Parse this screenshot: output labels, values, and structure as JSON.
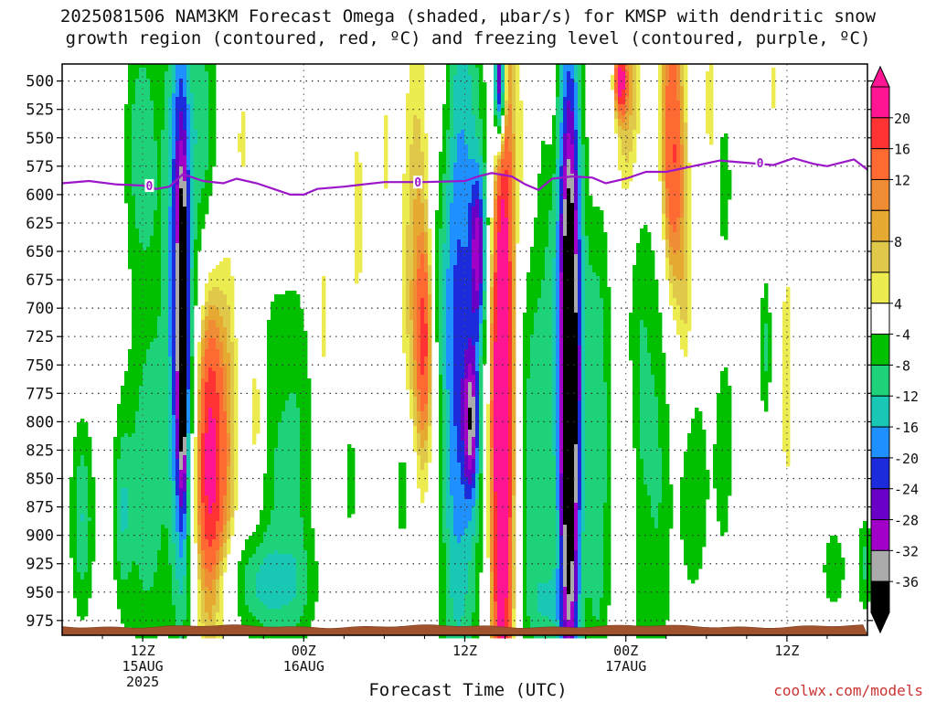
{
  "title_line1": "2025081506 NAM3KM Forecast Omega (shaded, µbar/s) for KMSP with dendritic snow",
  "title_line2": "growth region (contoured, red, ºC) and freezing level (contoured, purple, ºC)",
  "credit": "coolwx.com/models",
  "chart_data": {
    "type": "heatmap",
    "xlabel": "Forecast Time (UTC)",
    "x_ticks": [
      {
        "hour": 12,
        "lines": [
          "12Z",
          "15AUG",
          "2025"
        ]
      },
      {
        "hour": 24,
        "lines": [
          "00Z",
          "16AUG"
        ]
      },
      {
        "hour": 36,
        "lines": [
          "12Z"
        ]
      },
      {
        "hour": 48,
        "lines": [
          "00Z",
          "17AUG"
        ]
      },
      {
        "hour": 60,
        "lines": [
          "12Z"
        ]
      }
    ],
    "x_range_hours": [
      6,
      66
    ],
    "y_ticks": [
      500,
      525,
      550,
      575,
      600,
      625,
      650,
      675,
      700,
      725,
      750,
      775,
      800,
      825,
      850,
      875,
      900,
      925,
      950,
      975
    ],
    "ylim": [
      485,
      988
    ],
    "colorbar": {
      "labels": [
        "20",
        "16",
        "12",
        "8",
        "4",
        "-4",
        "-8",
        "-12",
        "-16",
        "-20",
        "-24",
        "-28",
        "-32",
        "-36"
      ],
      "bins": [
        {
          "color": "#ff1493"
        },
        {
          "color": "#ff3333"
        },
        {
          "color": "#ff6a33"
        },
        {
          "color": "#f08c33"
        },
        {
          "color": "#e6aa33"
        },
        {
          "color": "#e0c84a"
        },
        {
          "color": "#ecec50"
        },
        {
          "color": "#ffffff"
        },
        {
          "color": "#00c000"
        },
        {
          "color": "#1ed27a"
        },
        {
          "color": "#18c8b4"
        },
        {
          "color": "#1e90ff"
        },
        {
          "color": "#1c2cdc"
        },
        {
          "color": "#6a00c8"
        },
        {
          "color": "#a000c8"
        },
        {
          "color": "#aaaaaa"
        },
        {
          "color": "#000000"
        }
      ]
    },
    "freezing_level_label": "0",
    "freezing_level": [
      {
        "h": 6,
        "p": 590
      },
      {
        "h": 8,
        "p": 588
      },
      {
        "h": 10,
        "p": 591
      },
      {
        "h": 12,
        "p": 592
      },
      {
        "h": 13,
        "p": 595
      },
      {
        "h": 14,
        "p": 593
      },
      {
        "h": 15,
        "p": 582
      },
      {
        "h": 16.5,
        "p": 588
      },
      {
        "h": 18,
        "p": 590
      },
      {
        "h": 19,
        "p": 586
      },
      {
        "h": 20.5,
        "p": 590
      },
      {
        "h": 22,
        "p": 596
      },
      {
        "h": 23,
        "p": 600
      },
      {
        "h": 24,
        "p": 600
      },
      {
        "h": 25,
        "p": 595
      },
      {
        "h": 27,
        "p": 593
      },
      {
        "h": 30,
        "p": 589
      },
      {
        "h": 33,
        "p": 589
      },
      {
        "h": 36,
        "p": 588
      },
      {
        "h": 37,
        "p": 584
      },
      {
        "h": 38,
        "p": 581
      },
      {
        "h": 39.5,
        "p": 584
      },
      {
        "h": 40.5,
        "p": 591
      },
      {
        "h": 41.5,
        "p": 596
      },
      {
        "h": 42.5,
        "p": 586
      },
      {
        "h": 44,
        "p": 584
      },
      {
        "h": 45.5,
        "p": 585
      },
      {
        "h": 46.5,
        "p": 590
      },
      {
        "h": 48,
        "p": 586
      },
      {
        "h": 49.5,
        "p": 580
      },
      {
        "h": 51,
        "p": 580
      },
      {
        "h": 53,
        "p": 575
      },
      {
        "h": 55,
        "p": 570
      },
      {
        "h": 57,
        "p": 572
      },
      {
        "h": 59,
        "p": 574
      },
      {
        "h": 60.5,
        "p": 568
      },
      {
        "h": 62,
        "p": 573
      },
      {
        "h": 63,
        "p": 575
      },
      {
        "h": 65,
        "p": 569
      },
      {
        "h": 66,
        "p": 578
      }
    ],
    "omega_features": [
      {
        "h": 7.5,
        "p": 885,
        "v": -12,
        "sh": 0.6,
        "sp": 60
      },
      {
        "h": 10.5,
        "p": 880,
        "v": -10,
        "sh": 0.5,
        "sp": 60
      },
      {
        "h": 12.3,
        "p": 870,
        "v": -10,
        "sh": 1.0,
        "sp": 95
      },
      {
        "h": 11.8,
        "p": 555,
        "v": -8,
        "sh": 0.7,
        "sp": 70
      },
      {
        "h": 14.5,
        "p": 620,
        "v": -8,
        "sh": 2.2,
        "sp": 180
      },
      {
        "h": 14.8,
        "p": 700,
        "v": -24,
        "sh": 0.55,
        "sp": 180
      },
      {
        "h": 15.0,
        "p": 730,
        "v": -30,
        "sh": 0.22,
        "sp": 90
      },
      {
        "h": 17.0,
        "p": 830,
        "v": 24,
        "sh": 0.8,
        "sp": 110
      },
      {
        "h": 18.5,
        "p": 790,
        "v": 6,
        "sh": 0.6,
        "sp": 160
      },
      {
        "h": 16.5,
        "p": 540,
        "v": -7,
        "sh": 0.6,
        "sp": 60
      },
      {
        "h": 20.5,
        "p": 795,
        "v": 9,
        "sh": 0.5,
        "sp": 55
      },
      {
        "h": 21.5,
        "p": 830,
        "v": -7,
        "sh": 1.0,
        "sp": 120
      },
      {
        "h": 19.5,
        "p": 550,
        "v": 5,
        "sh": 0.4,
        "sp": 40
      },
      {
        "h": 23.5,
        "p": 840,
        "v": -8,
        "sh": 0.9,
        "sp": 120
      },
      {
        "h": 21.0,
        "p": 945,
        "v": -10,
        "sh": 2.5,
        "sp": 30
      },
      {
        "h": 25.5,
        "p": 710,
        "v": 5,
        "sh": 0.4,
        "sp": 70
      },
      {
        "h": 28.0,
        "p": 620,
        "v": 5,
        "sh": 0.5,
        "sp": 90
      },
      {
        "h": 27.5,
        "p": 850,
        "v": -6,
        "sh": 0.4,
        "sp": 40
      },
      {
        "h": 30.0,
        "p": 560,
        "v": 4.5,
        "sh": 0.3,
        "sp": 70
      },
      {
        "h": 31.5,
        "p": 860,
        "v": -8,
        "sh": 0.6,
        "sp": 50
      },
      {
        "h": 32.5,
        "p": 680,
        "v": 9,
        "sh": 0.9,
        "sp": 180
      },
      {
        "h": 33.0,
        "p": 730,
        "v": 12,
        "sh": 0.4,
        "sp": 60
      },
      {
        "h": 34.0,
        "p": 860,
        "v": 5,
        "sh": 0.5,
        "sp": 80
      },
      {
        "h": 35.0,
        "p": 760,
        "v": -10,
        "sh": 1.0,
        "sp": 200
      },
      {
        "h": 34.5,
        "p": 520,
        "v": 5,
        "sh": 0.5,
        "sp": 60
      },
      {
        "h": 36.0,
        "p": 680,
        "v": -14,
        "sh": 1.2,
        "sp": 280
      },
      {
        "h": 36.5,
        "p": 800,
        "v": -22,
        "sh": 0.4,
        "sp": 45
      },
      {
        "h": 37.0,
        "p": 650,
        "v": -22,
        "sh": 0.4,
        "sp": 50
      },
      {
        "h": 38.5,
        "p": 560,
        "v": -12,
        "sh": 0.7,
        "sp": 100
      },
      {
        "h": 38.6,
        "p": 495,
        "v": -40,
        "sh": 0.3,
        "sp": 40
      },
      {
        "h": 38.5,
        "p": 640,
        "v": 9,
        "sh": 0.9,
        "sp": 330
      },
      {
        "h": 38.8,
        "p": 740,
        "v": 26,
        "sh": 0.55,
        "sp": 270
      },
      {
        "h": 40.5,
        "p": 560,
        "v": 5,
        "sh": 0.6,
        "sp": 60
      },
      {
        "h": 41.0,
        "p": 840,
        "v": -8,
        "sh": 0.8,
        "sp": 130
      },
      {
        "h": 42.3,
        "p": 960,
        "v": -7,
        "sh": 1.2,
        "sp": 25
      },
      {
        "h": 43.7,
        "p": 700,
        "v": -12,
        "sh": 1.6,
        "sp": 240
      },
      {
        "h": 43.8,
        "p": 775,
        "v": -42,
        "sh": 0.5,
        "sp": 180
      },
      {
        "h": 42.5,
        "p": 520,
        "v": 5,
        "sh": 0.4,
        "sp": 50
      },
      {
        "h": 45.5,
        "p": 560,
        "v": 5,
        "sh": 0.6,
        "sp": 70
      },
      {
        "h": 46.0,
        "p": 840,
        "v": -8,
        "sh": 0.6,
        "sp": 160
      },
      {
        "h": 48.5,
        "p": 520,
        "v": 12,
        "sh": 0.9,
        "sp": 85
      },
      {
        "h": 47.6,
        "p": 500,
        "v": 18,
        "sh": 0.3,
        "sp": 20
      },
      {
        "h": 49.0,
        "p": 720,
        "v": -8,
        "sh": 0.7,
        "sp": 240
      },
      {
        "h": 48.2,
        "p": 870,
        "v": 6,
        "sh": 0.4,
        "sp": 70
      },
      {
        "h": 50.5,
        "p": 820,
        "v": -8,
        "sh": 0.7,
        "sp": 180
      },
      {
        "h": 51.3,
        "p": 520,
        "v": 8,
        "sh": 0.8,
        "sp": 150
      },
      {
        "h": 51.5,
        "p": 575,
        "v": 10,
        "sh": 0.6,
        "sp": 80
      },
      {
        "h": 52.5,
        "p": 700,
        "v": 5,
        "sh": 0.4,
        "sp": 80
      },
      {
        "h": 53.0,
        "p": 860,
        "v": -8,
        "sh": 0.8,
        "sp": 70
      },
      {
        "h": 54.3,
        "p": 520,
        "v": 5,
        "sh": 0.4,
        "sp": 70
      },
      {
        "h": 55.3,
        "p": 590,
        "v": -7,
        "sh": 0.4,
        "sp": 45
      },
      {
        "h": 55.5,
        "p": 830,
        "v": -7,
        "sh": 0.7,
        "sp": 80
      },
      {
        "h": 56.5,
        "p": 880,
        "v": 5,
        "sh": 0.6,
        "sp": 90
      },
      {
        "h": 58.4,
        "p": 735,
        "v": -9,
        "sh": 0.3,
        "sp": 45
      },
      {
        "h": 60.0,
        "p": 760,
        "v": 5,
        "sh": 0.5,
        "sp": 120
      },
      {
        "h": 59.0,
        "p": 505,
        "v": 5,
        "sh": 0.3,
        "sp": 25
      },
      {
        "h": 63.5,
        "p": 930,
        "v": -8,
        "sh": 0.6,
        "sp": 25
      },
      {
        "h": 65.8,
        "p": 925,
        "v": -9,
        "sh": 0.4,
        "sp": 30
      }
    ]
  }
}
